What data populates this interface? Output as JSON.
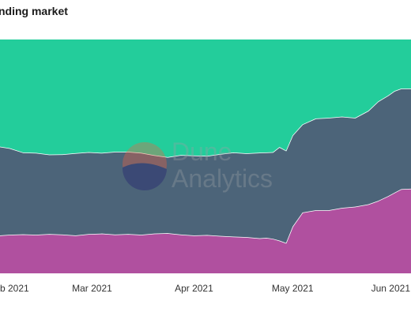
{
  "title": "nding market",
  "watermark": {
    "line1": "Dune",
    "line2": "Analytics"
  },
  "chart_data": {
    "type": "area",
    "stacked": true,
    "grid": false,
    "legend": "none",
    "xlim": [
      "2021-02-01",
      "2021-06-06"
    ],
    "ylim": [
      0,
      1
    ],
    "x_ticks": [
      {
        "date": "2021-02-01",
        "label": "b 2021"
      },
      {
        "date": "2021-03-01",
        "label": "Mar 2021"
      },
      {
        "date": "2021-04-01",
        "label": "Apr 2021"
      },
      {
        "date": "2021-05-01",
        "label": "May 2021"
      },
      {
        "date": "2021-06-01",
        "label": "Jun 2021"
      }
    ],
    "x": [
      "2021-02-01",
      "2021-02-04",
      "2021-02-08",
      "2021-02-12",
      "2021-02-16",
      "2021-02-20",
      "2021-02-24",
      "2021-02-28",
      "2021-03-04",
      "2021-03-08",
      "2021-03-12",
      "2021-03-16",
      "2021-03-20",
      "2021-03-24",
      "2021-03-28",
      "2021-04-01",
      "2021-04-05",
      "2021-04-09",
      "2021-04-13",
      "2021-04-17",
      "2021-04-21",
      "2021-04-23",
      "2021-04-25",
      "2021-04-27",
      "2021-04-29",
      "2021-05-01",
      "2021-05-04",
      "2021-05-08",
      "2021-05-12",
      "2021-05-16",
      "2021-05-20",
      "2021-05-24",
      "2021-05-27",
      "2021-05-30",
      "2021-06-01",
      "2021-06-03",
      "2021-06-06"
    ],
    "series": [
      {
        "color": "#b0509f",
        "values": [
          0.162,
          0.165,
          0.167,
          0.165,
          0.168,
          0.166,
          0.162,
          0.168,
          0.17,
          0.166,
          0.168,
          0.165,
          0.17,
          0.172,
          0.166,
          0.162,
          0.164,
          0.16,
          0.157,
          0.155,
          0.15,
          0.152,
          0.148,
          0.14,
          0.13,
          0.2,
          0.26,
          0.27,
          0.27,
          0.28,
          0.285,
          0.295,
          0.31,
          0.33,
          0.345,
          0.36,
          0.362
        ]
      },
      {
        "color": "#4c6479",
        "values": [
          0.38,
          0.37,
          0.35,
          0.35,
          0.34,
          0.343,
          0.352,
          0.35,
          0.345,
          0.354,
          0.352,
          0.35,
          0.335,
          0.325,
          0.34,
          0.342,
          0.338,
          0.35,
          0.36,
          0.358,
          0.366,
          0.365,
          0.37,
          0.4,
          0.395,
          0.39,
          0.377,
          0.392,
          0.395,
          0.39,
          0.38,
          0.4,
          0.425,
          0.43,
          0.435,
          0.43,
          0.428
        ]
      },
      {
        "color": "#23cd9b",
        "values": [
          0.458,
          0.465,
          0.483,
          0.485,
          0.492,
          0.491,
          0.486,
          0.482,
          0.485,
          0.48,
          0.48,
          0.485,
          0.495,
          0.503,
          0.494,
          0.496,
          0.498,
          0.49,
          0.483,
          0.487,
          0.484,
          0.483,
          0.482,
          0.46,
          0.475,
          0.41,
          0.363,
          0.338,
          0.335,
          0.33,
          0.335,
          0.305,
          0.265,
          0.24,
          0.22,
          0.21,
          0.21
        ]
      }
    ]
  }
}
